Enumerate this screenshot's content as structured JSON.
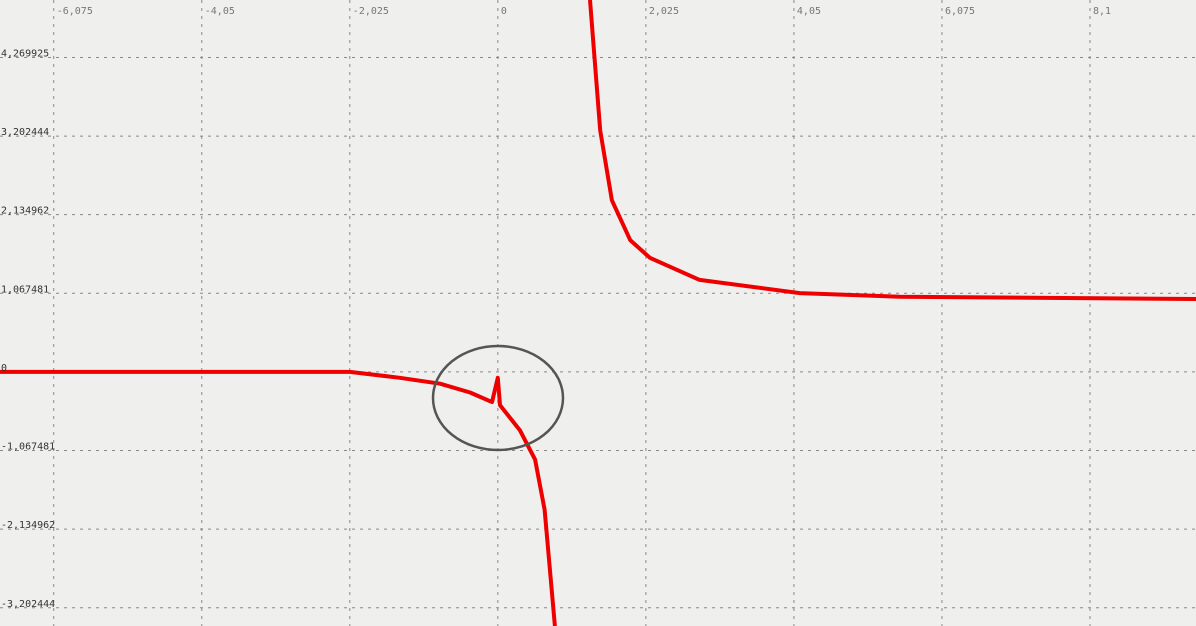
{
  "chart_data": {
    "type": "line",
    "x": [
      -6.81,
      -4.05,
      -2.025,
      -1.34,
      -0.79,
      -0.38,
      -0.08,
      0,
      0.03,
      0.1,
      0.3,
      0.51,
      0.64,
      0.78,
      null,
      1.26,
      1.4,
      1.56,
      1.81,
      2.08,
      2.76,
      4.13,
      5.5,
      9.55
    ],
    "values": [
      0,
      0,
      0,
      -0.08,
      -0.16,
      -0.28,
      -0.41,
      -0.08,
      -0.45,
      -0.54,
      -0.79,
      -1.19,
      -1.87,
      -3.45,
      null,
      5.05,
      3.28,
      2.33,
      1.79,
      1.55,
      1.25,
      1.07,
      1.02,
      0.99
    ],
    "color": "#ee0000",
    "xlim": [
      -6.81,
      9.55
    ],
    "ylim": [
      -3.45,
      5.05
    ],
    "xticks": [
      {
        "value": -6.075,
        "label": "-6,075"
      },
      {
        "value": -4.05,
        "label": "-4,05"
      },
      {
        "value": -2.025,
        "label": "-2,025"
      },
      0,
      {
        "value": 2.025,
        "label": "2,025"
      },
      {
        "value": 4.05,
        "label": "4,05"
      },
      {
        "value": 6.075,
        "label": "6,075"
      },
      {
        "value": 8.1,
        "label": "8,1"
      }
    ],
    "yticks": [
      {
        "value": 4.269925,
        "label": "4,269925"
      },
      {
        "value": 3.202444,
        "label": "3,202444"
      },
      {
        "value": 2.134962,
        "label": "2,134962"
      },
      {
        "value": 1.067481,
        "label": "1,067481"
      },
      0,
      {
        "value": -1.067481,
        "label": "-1,067481"
      },
      {
        "value": -2.134962,
        "label": "-2,134962"
      },
      {
        "value": -3.202444,
        "label": "-3,202444"
      }
    ],
    "grid": true
  }
}
